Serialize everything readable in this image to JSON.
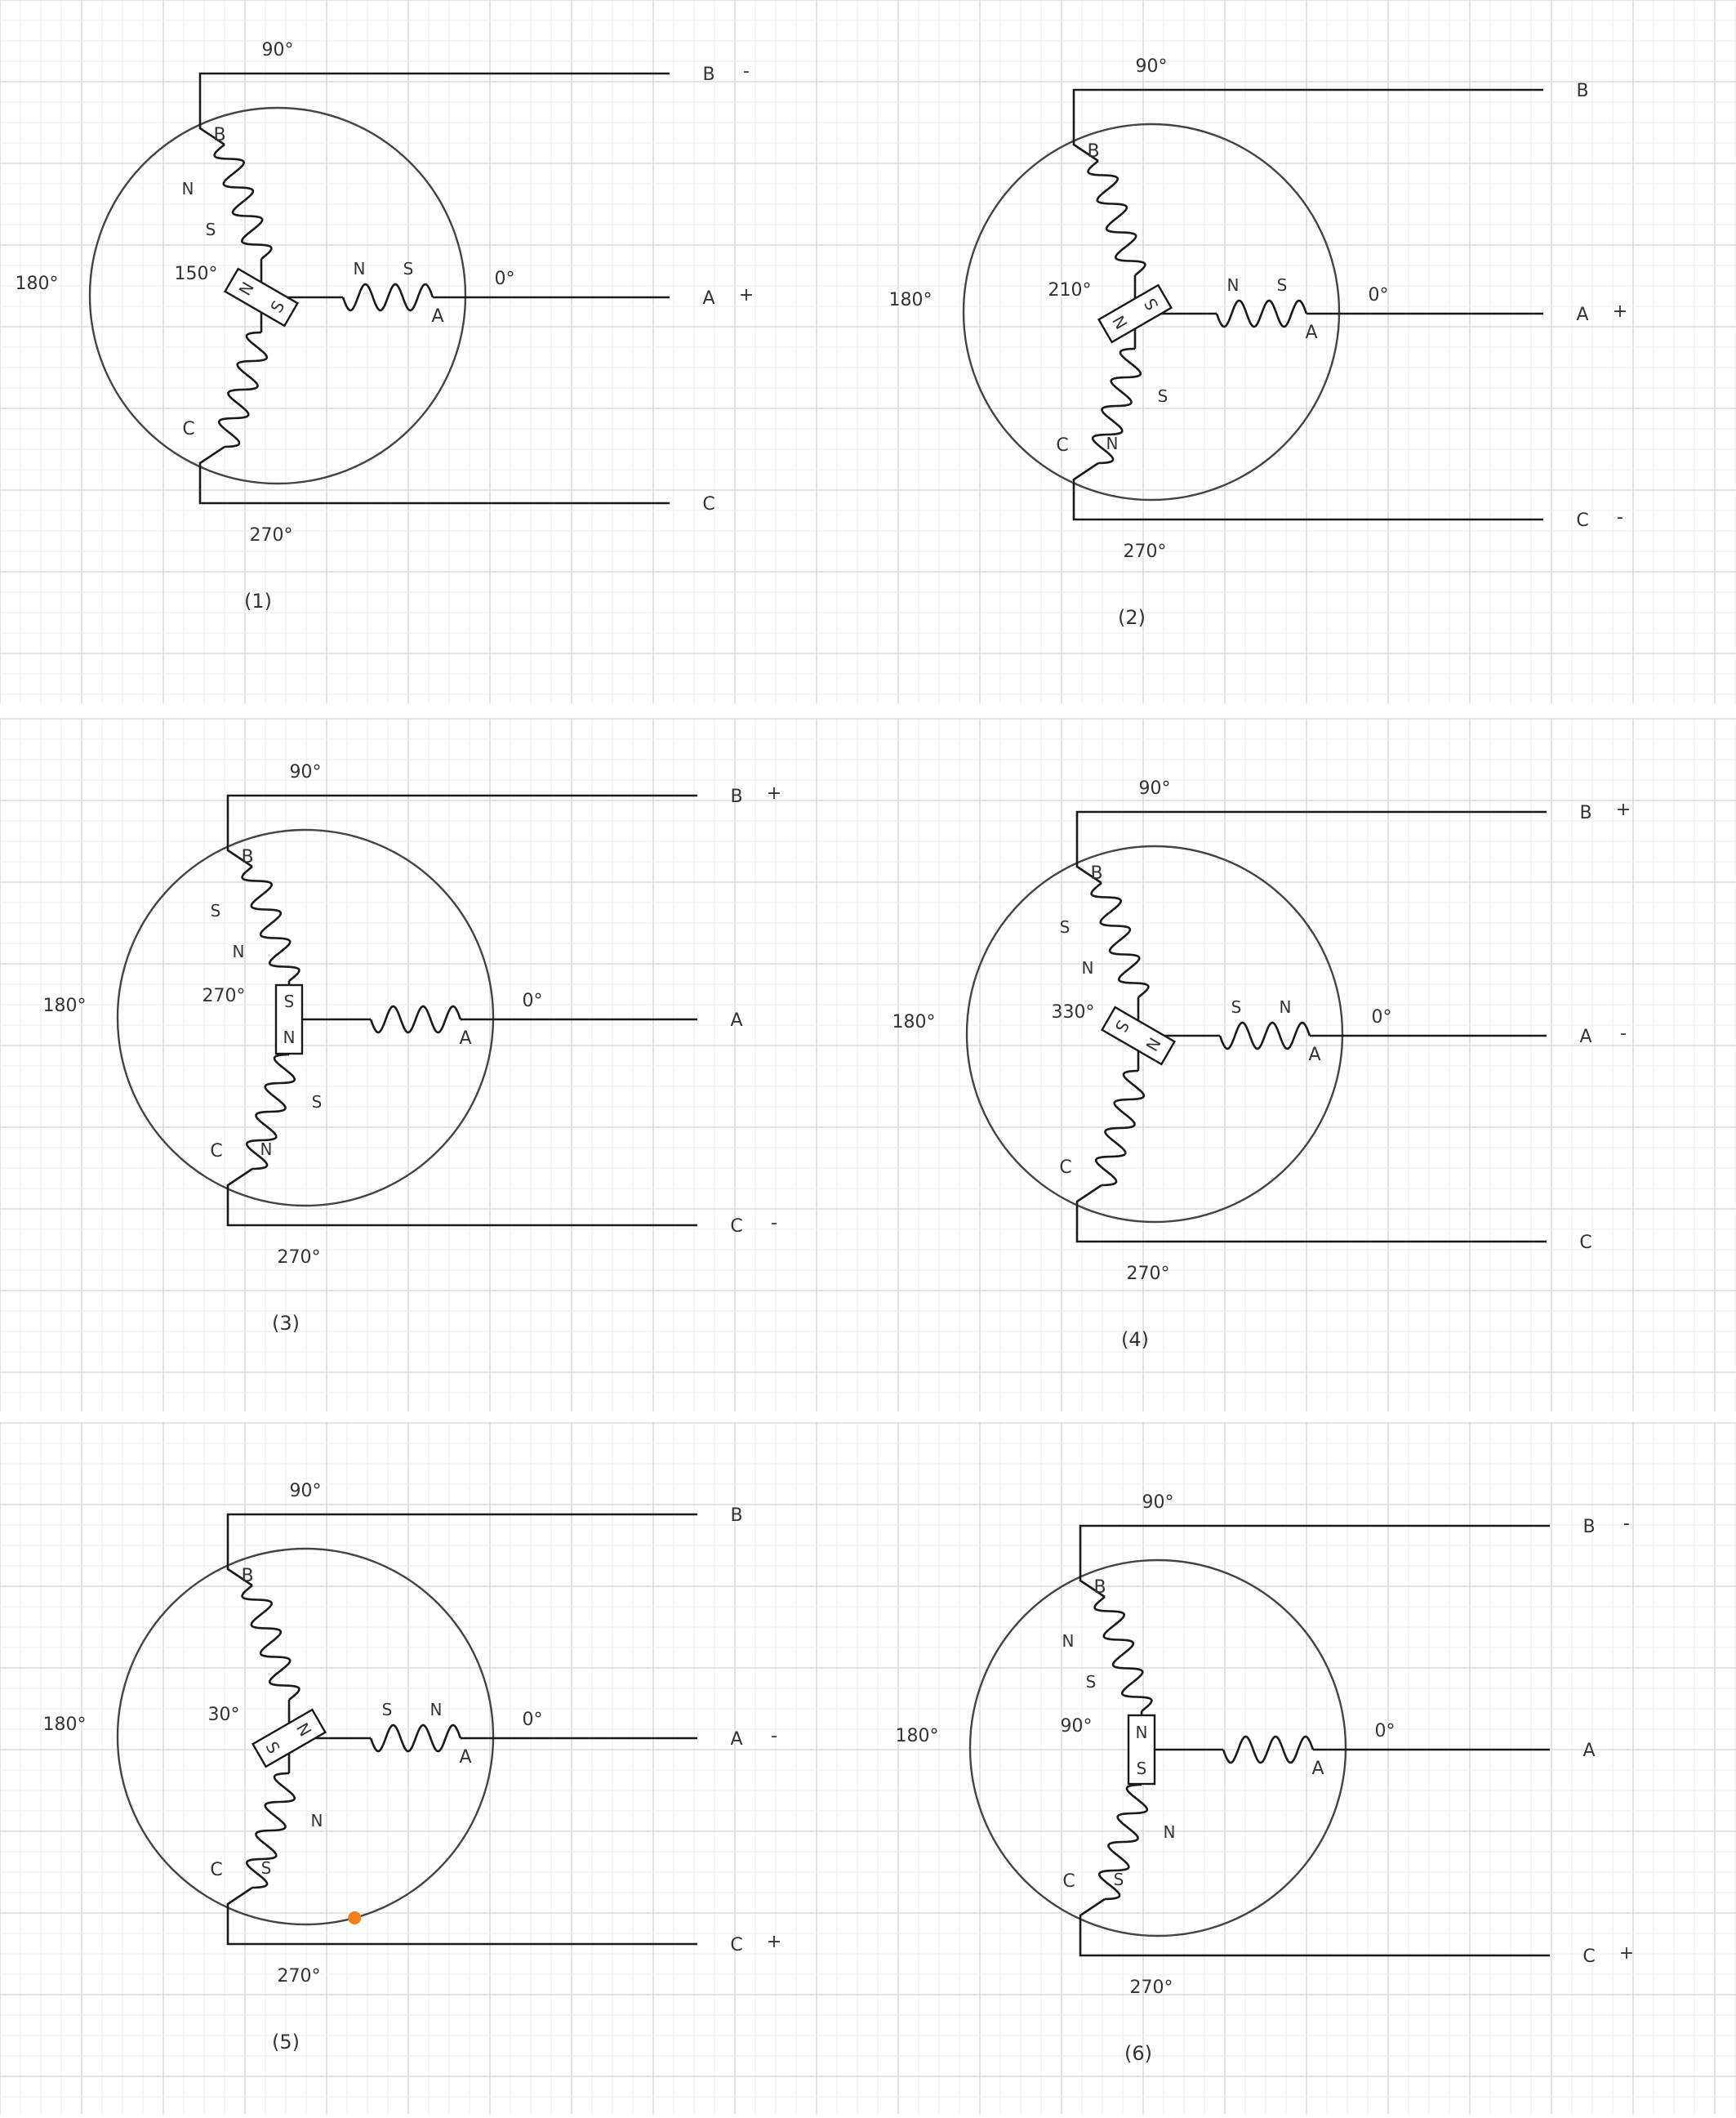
{
  "diagrams": [
    {
      "caption": "(1)",
      "angles": {
        "top": "90°",
        "left": "180°",
        "right": "0°",
        "bottom": "270°"
      },
      "rotor_angle": "150°",
      "rotor_angle_value": 150,
      "rotor_ends": [
        "N",
        "S"
      ],
      "terminals": [
        {
          "name": "B",
          "sign": "-"
        },
        {
          "name": "A",
          "sign": "+"
        },
        {
          "name": "C",
          "sign": ""
        }
      ],
      "winding_labels": {
        "a": "A",
        "b": "B",
        "c": "C"
      },
      "poles": {
        "a": [
          "N",
          "S"
        ],
        "b": [
          "N",
          "S"
        ],
        "c": []
      }
    },
    {
      "caption": "(2)",
      "angles": {
        "top": "90°",
        "left": "180°",
        "right": "0°",
        "bottom": "270°"
      },
      "rotor_angle": "210°",
      "rotor_angle_value": 210,
      "rotor_ends": [
        "N",
        "S"
      ],
      "terminals": [
        {
          "name": "B",
          "sign": ""
        },
        {
          "name": "A",
          "sign": "+"
        },
        {
          "name": "C",
          "sign": "-"
        }
      ],
      "winding_labels": {
        "a": "A",
        "b": "B",
        "c": "C"
      },
      "poles": {
        "a": [
          "N",
          "S"
        ],
        "b": [],
        "c": [
          "S",
          "N"
        ]
      }
    },
    {
      "caption": "(3)",
      "angles": {
        "top": "90°",
        "left": "180°",
        "right": "0°",
        "bottom": "270°"
      },
      "rotor_angle": "270°",
      "rotor_angle_value": 270,
      "rotor_ends": [
        "N",
        "S"
      ],
      "terminals": [
        {
          "name": "B",
          "sign": "+"
        },
        {
          "name": "A",
          "sign": ""
        },
        {
          "name": "C",
          "sign": "-"
        }
      ],
      "winding_labels": {
        "a": "A",
        "b": "B",
        "c": "C"
      },
      "poles": {
        "a": [],
        "b": [
          "S",
          "N"
        ],
        "c": [
          "S",
          "N"
        ]
      }
    },
    {
      "caption": "(4)",
      "angles": {
        "top": "90°",
        "left": "180°",
        "right": "0°",
        "bottom": "270°"
      },
      "rotor_angle": "330°",
      "rotor_angle_value": 330,
      "rotor_ends": [
        "N",
        "S"
      ],
      "terminals": [
        {
          "name": "B",
          "sign": "+"
        },
        {
          "name": "A",
          "sign": "-"
        },
        {
          "name": "C",
          "sign": ""
        }
      ],
      "winding_labels": {
        "a": "A",
        "b": "B",
        "c": "C"
      },
      "poles": {
        "a": [
          "S",
          "N"
        ],
        "b": [
          "S",
          "N"
        ],
        "c": []
      }
    },
    {
      "caption": "(5)",
      "angles": {
        "top": "90°",
        "left": "180°",
        "right": "0°",
        "bottom": "270°"
      },
      "rotor_angle": "30°",
      "rotor_angle_value": 30,
      "rotor_ends": [
        "N",
        "S"
      ],
      "terminals": [
        {
          "name": "B",
          "sign": ""
        },
        {
          "name": "A",
          "sign": "-"
        },
        {
          "name": "C",
          "sign": "+"
        }
      ],
      "winding_labels": {
        "a": "A",
        "b": "B",
        "c": "C"
      },
      "poles": {
        "a": [
          "S",
          "N"
        ],
        "b": [],
        "c": [
          "N",
          "S"
        ]
      },
      "marker_color": "#f07f1d"
    },
    {
      "caption": "(6)",
      "angles": {
        "top": "90°",
        "left": "180°",
        "right": "0°",
        "bottom": "270°"
      },
      "rotor_angle": "90°",
      "rotor_angle_value": 90,
      "rotor_ends": [
        "N",
        "S"
      ],
      "terminals": [
        {
          "name": "B",
          "sign": "-"
        },
        {
          "name": "A",
          "sign": ""
        },
        {
          "name": "C",
          "sign": "+"
        }
      ],
      "winding_labels": {
        "a": "A",
        "b": "B",
        "c": "C"
      },
      "poles": {
        "a": [],
        "b": [
          "N",
          "S"
        ],
        "c": [
          "N",
          "S"
        ]
      }
    }
  ]
}
